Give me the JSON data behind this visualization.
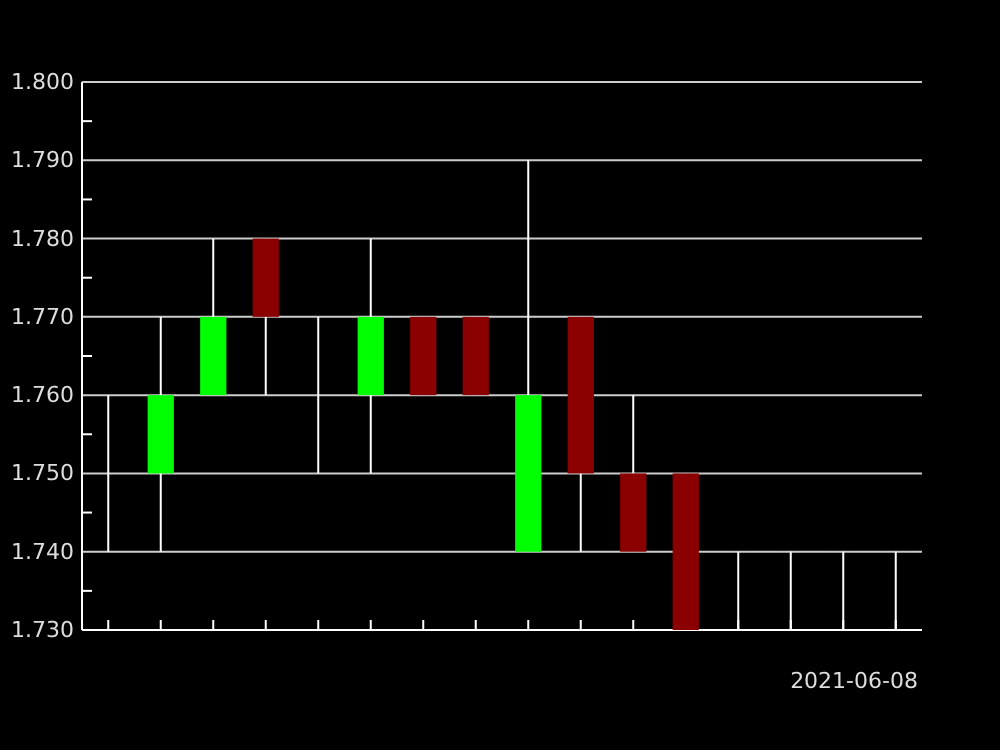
{
  "chart_data": {
    "type": "candlestick",
    "xlabel": "2021-06-08",
    "categories": [
      null,
      null,
      null,
      null,
      null,
      null,
      null,
      null,
      null,
      null,
      null,
      null,
      null,
      null,
      null,
      null
    ],
    "ohlc": [
      [
        1.76,
        1.76,
        1.74,
        1.76
      ],
      [
        1.75,
        1.77,
        1.74,
        1.76
      ],
      [
        1.76,
        1.78,
        1.76,
        1.77
      ],
      [
        1.78,
        1.78,
        1.76,
        1.77
      ],
      [
        1.76,
        1.77,
        1.75,
        1.76
      ],
      [
        1.76,
        1.78,
        1.75,
        1.77
      ],
      [
        1.77,
        1.77,
        1.76,
        1.76
      ],
      [
        1.77,
        1.77,
        1.76,
        1.76
      ],
      [
        1.74,
        1.79,
        1.74,
        1.76
      ],
      [
        1.77,
        1.77,
        1.74,
        1.75
      ],
      [
        1.75,
        1.76,
        1.74,
        1.74
      ],
      [
        1.75,
        1.75,
        1.73,
        1.73
      ],
      [
        1.74,
        1.74,
        1.73,
        1.74
      ],
      [
        1.74,
        1.74,
        1.73,
        1.74
      ],
      [
        1.74,
        1.74,
        1.73,
        1.74
      ],
      [
        1.74,
        1.74,
        1.73,
        1.74
      ]
    ],
    "colors": [
      "#00ff00",
      "#00ff00",
      "#00ff00",
      "#8b0000",
      "#00ff00",
      "#00ff00",
      "#8b0000",
      "#8b0000",
      "#00ff00",
      "#8b0000",
      "#8b0000",
      "#8b0000",
      "#00ff00",
      "#00ff00",
      "#00ff00",
      "#00ff00"
    ],
    "ylim": [
      1.73,
      1.8
    ],
    "yticks": [
      {
        "value": 1.73,
        "label": "1.730"
      },
      {
        "value": 1.735,
        "label": null
      },
      {
        "value": 1.74,
        "label": "1.740"
      },
      {
        "value": 1.745,
        "label": null
      },
      {
        "value": 1.75,
        "label": "1.750"
      },
      {
        "value": 1.755,
        "label": null
      },
      {
        "value": 1.76,
        "label": "1.760"
      },
      {
        "value": 1.765,
        "label": null
      },
      {
        "value": 1.77,
        "label": "1.770"
      },
      {
        "value": 1.775,
        "label": null
      },
      {
        "value": 1.78,
        "label": "1.780"
      },
      {
        "value": 1.785,
        "label": null
      },
      {
        "value": 1.79,
        "label": "1.790"
      },
      {
        "value": 1.795,
        "label": null
      },
      {
        "value": 1.8,
        "label": "1.800"
      }
    ],
    "grid": "y"
  }
}
